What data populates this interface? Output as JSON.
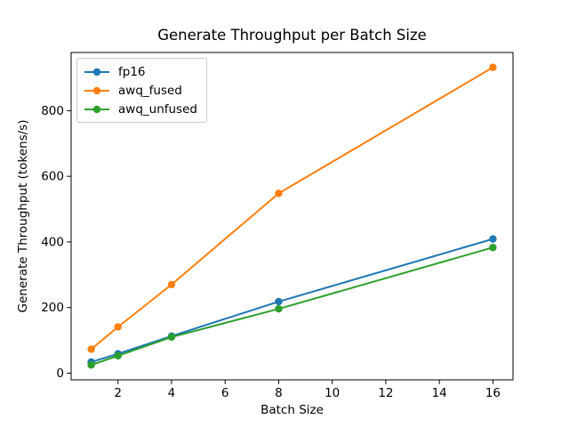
{
  "chart_data": {
    "type": "line",
    "title": "Generate Throughput per Batch Size",
    "xlabel": "Batch Size",
    "ylabel": "Generate Throughput (tokens/s)",
    "x": [
      1,
      2,
      4,
      8,
      16
    ],
    "series": [
      {
        "name": "fp16",
        "color": "#1f77b4",
        "values": [
          34,
          59,
          113,
          218,
          409
        ]
      },
      {
        "name": "awq_fused",
        "color": "#ff7f0e",
        "values": [
          73,
          141,
          270,
          548,
          932
        ]
      },
      {
        "name": "awq_unfused",
        "color": "#2ca02c",
        "values": [
          25,
          53,
          110,
          196,
          383
        ]
      }
    ],
    "xlim": [
      0.25,
      16.75
    ],
    "ylim": [
      -20.4,
      977.4
    ],
    "xticks": [
      2,
      4,
      6,
      8,
      10,
      12,
      14,
      16
    ],
    "yticks": [
      0,
      200,
      400,
      600,
      800
    ],
    "legend_position": "upper left",
    "grid": false,
    "marker": "o",
    "axis_color": "#000000",
    "background_color": "#ffffff"
  }
}
